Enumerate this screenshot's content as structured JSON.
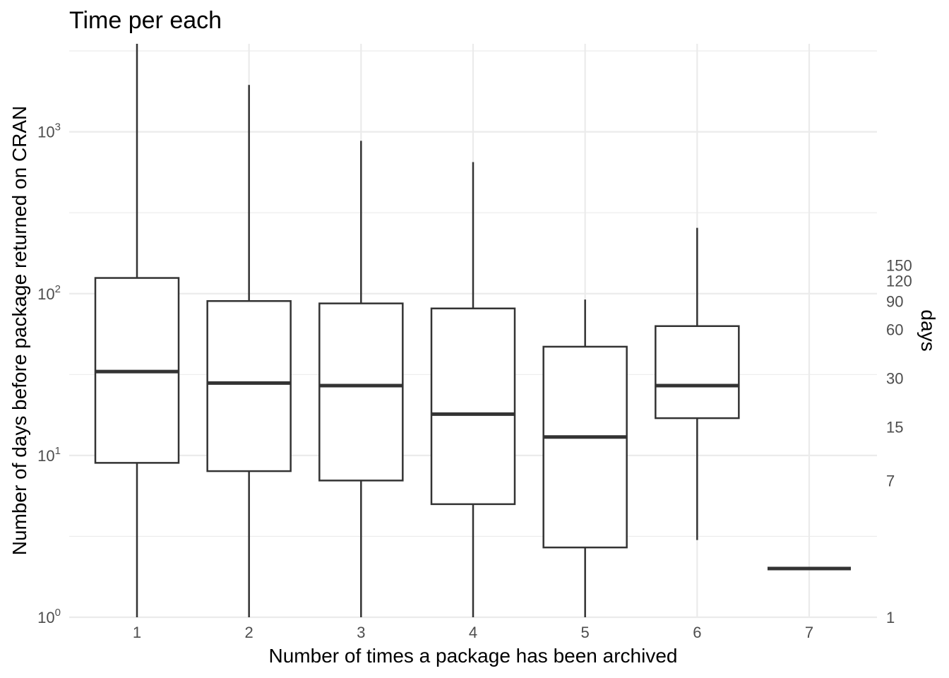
{
  "chart_data": {
    "type": "box",
    "title": "Time per each",
    "xlabel": "Number of times a package has been archived",
    "ylabel": "Number of days before package returned on CRAN",
    "secondary_ylabel": "days",
    "y_scale": "log10",
    "ylim": [
      1,
      3500
    ],
    "y_ticks": [
      {
        "value": 1,
        "base": "10",
        "exp": "0"
      },
      {
        "value": 10,
        "base": "10",
        "exp": "1"
      },
      {
        "value": 100,
        "base": "10",
        "exp": "2"
      },
      {
        "value": 1000,
        "base": "10",
        "exp": "3"
      }
    ],
    "secondary_y_ticks": [
      {
        "value": 1,
        "label": "1"
      },
      {
        "value": 7,
        "label": "7"
      },
      {
        "value": 15,
        "label": "15"
      },
      {
        "value": 30,
        "label": "30"
      },
      {
        "value": 60,
        "label": "60"
      },
      {
        "value": 90,
        "label": "90"
      },
      {
        "value": 120,
        "label": "120"
      },
      {
        "value": 150,
        "label": "150"
      }
    ],
    "categories": [
      "1",
      "2",
      "3",
      "4",
      "5",
      "6",
      "7"
    ],
    "boxes": [
      {
        "category": "1",
        "lower_whisker": 1,
        "q1": 9,
        "median": 33,
        "q3": 125,
        "upper_whisker": 3500
      },
      {
        "category": "2",
        "lower_whisker": 1,
        "q1": 8,
        "median": 28,
        "q3": 90,
        "upper_whisker": 1950
      },
      {
        "category": "3",
        "lower_whisker": 1,
        "q1": 7,
        "median": 27,
        "q3": 87,
        "upper_whisker": 880
      },
      {
        "category": "4",
        "lower_whisker": 1,
        "q1": 5,
        "median": 18,
        "q3": 81,
        "upper_whisker": 650
      },
      {
        "category": "5",
        "lower_whisker": 1,
        "q1": 2.7,
        "median": 13,
        "q3": 47,
        "upper_whisker": 92
      },
      {
        "category": "6",
        "lower_whisker": 3,
        "q1": 17,
        "median": 27,
        "q3": 63,
        "upper_whisker": 255
      },
      {
        "category": "7",
        "lower_whisker": 2,
        "q1": 2,
        "median": 2,
        "q3": 2,
        "upper_whisker": 2
      }
    ],
    "grid": true,
    "legend": "none"
  }
}
